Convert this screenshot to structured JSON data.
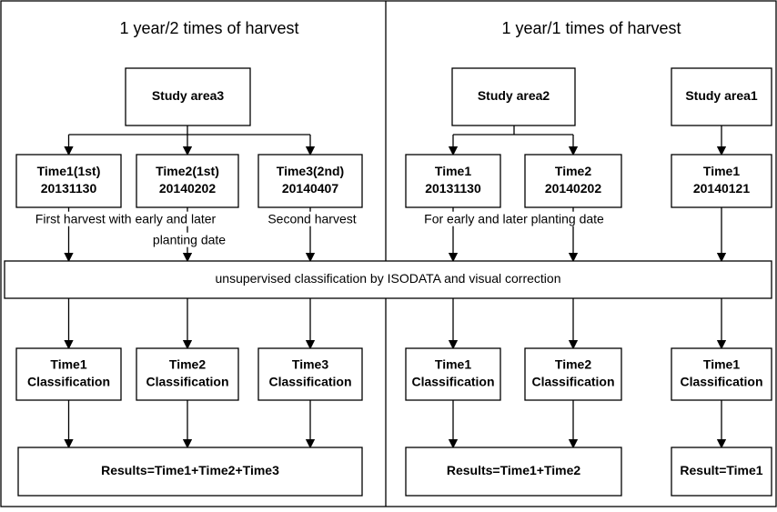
{
  "panels": [
    {
      "title": "1 year/2 times of harvest"
    },
    {
      "title": "1 year/1 times of harvest"
    }
  ],
  "study_areas": [
    {
      "label": "Study area3"
    },
    {
      "label": "Study area2"
    },
    {
      "label": "Study area1"
    }
  ],
  "times": [
    {
      "lines": [
        "Time1(1st)",
        "20131130"
      ]
    },
    {
      "lines": [
        "Time2(1st)",
        "20140202"
      ]
    },
    {
      "lines": [
        "Time3(2nd)",
        "20140407"
      ]
    },
    {
      "lines": [
        "Time1",
        "20131130"
      ]
    },
    {
      "lines": [
        "Time2",
        "20140202"
      ]
    },
    {
      "lines": [
        "Time1",
        "20140121"
      ]
    }
  ],
  "notes": [
    {
      "lines": [
        "First harvest with early and later",
        "planting date"
      ]
    },
    {
      "lines": [
        "Second harvest"
      ]
    },
    {
      "lines": [
        "For early and later planting date"
      ]
    }
  ],
  "process": "unsupervised classification by ISODATA and visual correction",
  "classifications": [
    {
      "lines": [
        "Time1",
        "Classification"
      ]
    },
    {
      "lines": [
        "Time2",
        "Classification"
      ]
    },
    {
      "lines": [
        "Time3",
        "Classification"
      ]
    },
    {
      "lines": [
        "Time1",
        "Classification"
      ]
    },
    {
      "lines": [
        "Time2",
        "Classification"
      ]
    },
    {
      "lines": [
        "Time1",
        "Classification"
      ]
    }
  ],
  "results": [
    {
      "label": "Results=Time1+Time2+Time3"
    },
    {
      "label": "Results=Time1+Time2"
    },
    {
      "label": "Result=Time1"
    }
  ]
}
